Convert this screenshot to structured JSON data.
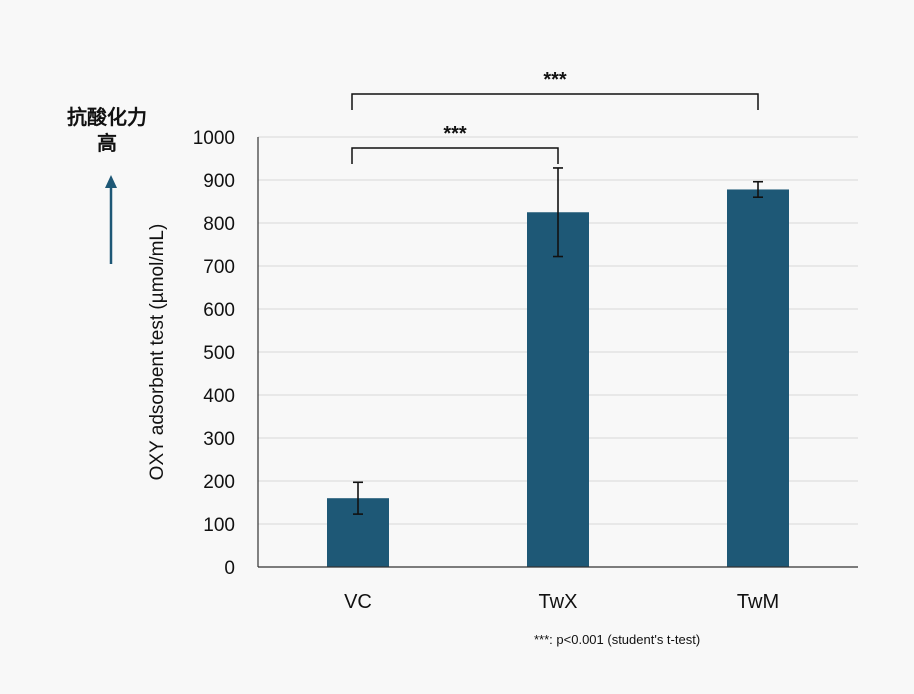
{
  "colors": {
    "bar": "#1e5876",
    "arrow": "#1e5876",
    "grid": "#d9d9d9",
    "axis": "#333333"
  },
  "side_label": {
    "line1": "抗酸化力",
    "line2": "高",
    "icon": "up-arrow-icon"
  },
  "chart_data": {
    "type": "bar",
    "categories": [
      "VC",
      "TwX",
      "TwM"
    ],
    "values": [
      160,
      825,
      878
    ],
    "errors": [
      37,
      103,
      18
    ],
    "ylabel": "OXY adsorbent test (µmol/mL)",
    "xlabel": "",
    "title": "",
    "ylim": [
      0,
      1000
    ],
    "yticks": [
      0,
      100,
      200,
      300,
      400,
      500,
      600,
      700,
      800,
      900,
      1000
    ],
    "grid": true,
    "significance": [
      {
        "from": "VC",
        "to": "TwX",
        "label": "***"
      },
      {
        "from": "VC",
        "to": "TwM",
        "label": "***"
      }
    ],
    "footnote": "***: p<0.001 (student's t-test)"
  }
}
